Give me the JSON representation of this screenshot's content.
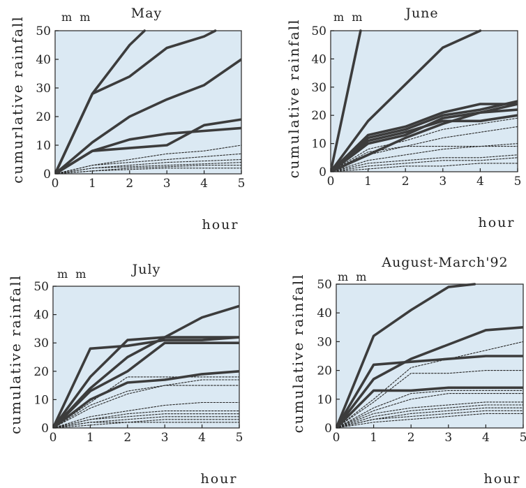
{
  "chart_data": [
    {
      "type": "line",
      "title": "May",
      "unit": "mm",
      "ylabel": "cumurlative rainfall",
      "xlabel": "hour",
      "xlim": [
        0,
        5
      ],
      "ylim": [
        0,
        50
      ],
      "xticks": [
        "0",
        "1",
        "2",
        "3",
        "4",
        "5"
      ],
      "yticks": [
        "0",
        "10",
        "20",
        "30",
        "40",
        "50"
      ],
      "grid": false,
      "series": [
        {
          "style": "solid",
          "x": [
            0,
            1,
            2,
            2.4
          ],
          "y": [
            0,
            28,
            45,
            50
          ]
        },
        {
          "style": "solid",
          "x": [
            0,
            1,
            2,
            3,
            4,
            4.3
          ],
          "y": [
            0,
            28,
            34,
            44,
            48,
            50
          ]
        },
        {
          "style": "solid",
          "x": [
            0,
            1,
            2,
            3,
            4,
            5
          ],
          "y": [
            0,
            11,
            20,
            26,
            31,
            40
          ]
        },
        {
          "style": "solid",
          "x": [
            0,
            1,
            2,
            3,
            4,
            5
          ],
          "y": [
            0,
            8,
            12,
            14,
            15,
            16
          ]
        },
        {
          "style": "solid",
          "x": [
            0,
            1,
            2,
            3,
            4,
            5
          ],
          "y": [
            0,
            8,
            9,
            10,
            17,
            19
          ]
        },
        {
          "style": "dotted",
          "x": [
            0,
            1,
            2,
            3,
            4,
            5
          ],
          "y": [
            0,
            3,
            5,
            7,
            8,
            10
          ]
        },
        {
          "style": "dotted",
          "x": [
            0,
            1,
            2,
            3,
            4,
            5
          ],
          "y": [
            0,
            3,
            4,
            5,
            6,
            7
          ]
        },
        {
          "style": "dotted",
          "x": [
            0,
            1,
            2,
            3,
            4,
            5
          ],
          "y": [
            0,
            2,
            3,
            4,
            4.5,
            5
          ]
        },
        {
          "style": "dotted",
          "x": [
            0,
            1,
            2,
            3,
            4,
            5
          ],
          "y": [
            0,
            2,
            2.5,
            3,
            3.5,
            4
          ]
        },
        {
          "style": "dotted",
          "x": [
            0,
            1,
            2,
            3,
            4,
            5
          ],
          "y": [
            0,
            1,
            2,
            2.5,
            3,
            3
          ]
        },
        {
          "style": "dotted",
          "x": [
            0,
            1,
            2,
            3,
            4,
            5
          ],
          "y": [
            0,
            1,
            1.5,
            2,
            2,
            2
          ]
        }
      ]
    },
    {
      "type": "line",
      "title": "June",
      "unit": "mm",
      "ylabel": "cumulative rainfall",
      "xlabel": "hour",
      "xlim": [
        0,
        5
      ],
      "ylim": [
        0,
        50
      ],
      "xticks": [
        "0",
        "1",
        "2",
        "3",
        "4",
        "5"
      ],
      "yticks": [
        "0",
        "10",
        "20",
        "30",
        "40",
        "50"
      ],
      "grid": false,
      "series": [
        {
          "style": "solid",
          "x": [
            0,
            0.8
          ],
          "y": [
            0,
            50
          ]
        },
        {
          "style": "solid",
          "x": [
            0,
            1,
            2,
            3,
            4
          ],
          "y": [
            0,
            18,
            31,
            44,
            50
          ]
        },
        {
          "style": "solid",
          "x": [
            0,
            1,
            2,
            3,
            4,
            5
          ],
          "y": [
            0,
            13,
            16,
            21,
            24,
            24
          ]
        },
        {
          "style": "solid",
          "x": [
            0,
            1,
            2,
            3,
            4,
            5
          ],
          "y": [
            0,
            12,
            15,
            20,
            22,
            25
          ]
        },
        {
          "style": "solid",
          "x": [
            0,
            1,
            2,
            3,
            4,
            5
          ],
          "y": [
            0,
            11,
            14,
            18,
            18,
            20
          ]
        },
        {
          "style": "solid",
          "x": [
            0,
            1,
            2,
            3,
            4,
            5
          ],
          "y": [
            0,
            10,
            13,
            19,
            21,
            22
          ]
        },
        {
          "style": "solid",
          "x": [
            0,
            1,
            2,
            3,
            4,
            5
          ],
          "y": [
            0,
            6,
            12,
            17,
            21,
            24
          ]
        },
        {
          "style": "dotted",
          "x": [
            0,
            1,
            2,
            3,
            4,
            5
          ],
          "y": [
            0,
            8,
            11,
            15,
            17,
            19
          ]
        },
        {
          "style": "dotted",
          "x": [
            0,
            1,
            2,
            3,
            4,
            5
          ],
          "y": [
            0,
            6,
            9,
            12,
            14,
            16
          ]
        },
        {
          "style": "dotted",
          "x": [
            0,
            1,
            2,
            3,
            4,
            5
          ],
          "y": [
            0,
            7,
            9,
            9,
            9,
            9
          ]
        },
        {
          "style": "dotted",
          "x": [
            0,
            1,
            2,
            3,
            4,
            5
          ],
          "y": [
            0,
            4,
            6,
            8,
            9,
            10
          ]
        },
        {
          "style": "dotted",
          "x": [
            0,
            1,
            2,
            3,
            4,
            5
          ],
          "y": [
            0,
            3,
            4,
            5,
            5,
            6
          ]
        },
        {
          "style": "dotted",
          "x": [
            0,
            1,
            2,
            3,
            4,
            5
          ],
          "y": [
            0,
            2,
            3,
            4,
            4,
            5
          ]
        },
        {
          "style": "dotted",
          "x": [
            0,
            1,
            2,
            3,
            4,
            5
          ],
          "y": [
            0,
            1,
            2,
            2,
            3,
            3
          ]
        }
      ]
    },
    {
      "type": "line",
      "title": "July",
      "unit": "mm",
      "ylabel": "cumulative rainfall",
      "xlabel": "hour",
      "xlim": [
        0,
        5
      ],
      "ylim": [
        0,
        50
      ],
      "xticks": [
        "0",
        "1",
        "2",
        "3",
        "4",
        "5"
      ],
      "yticks": [
        "0",
        "10",
        "20",
        "30",
        "40",
        "50"
      ],
      "grid": false,
      "series": [
        {
          "style": "solid",
          "x": [
            0,
            1,
            2,
            3,
            4,
            5
          ],
          "y": [
            0,
            28,
            29,
            31,
            31,
            32
          ]
        },
        {
          "style": "solid",
          "x": [
            0,
            1,
            2,
            3,
            4,
            5
          ],
          "y": [
            0,
            18,
            31,
            32,
            32,
            32
          ]
        },
        {
          "style": "solid",
          "x": [
            0,
            1,
            2,
            3,
            4,
            5
          ],
          "y": [
            0,
            14,
            25,
            32,
            39,
            43
          ]
        },
        {
          "style": "solid",
          "x": [
            0,
            1,
            2,
            3,
            4,
            5
          ],
          "y": [
            0,
            13,
            20,
            30,
            30,
            30
          ]
        },
        {
          "style": "solid",
          "x": [
            0,
            1,
            2,
            3,
            4,
            5
          ],
          "y": [
            0,
            10,
            16,
            17,
            19,
            20
          ]
        },
        {
          "style": "dotted",
          "x": [
            0,
            1,
            2,
            3,
            4,
            5
          ],
          "y": [
            0,
            9,
            18,
            18,
            18,
            18
          ]
        },
        {
          "style": "dotted",
          "x": [
            0,
            1,
            2,
            3,
            4,
            5
          ],
          "y": [
            0,
            8,
            13,
            15,
            17,
            17
          ]
        },
        {
          "style": "dotted",
          "x": [
            0,
            1,
            2,
            3,
            4,
            5
          ],
          "y": [
            0,
            7,
            12,
            15,
            15,
            15
          ]
        },
        {
          "style": "dotted",
          "x": [
            0,
            1,
            2,
            3,
            4,
            5
          ],
          "y": [
            0,
            4,
            6,
            8,
            9,
            9
          ]
        },
        {
          "style": "dotted",
          "x": [
            0,
            1,
            2,
            3,
            4,
            5
          ],
          "y": [
            0,
            3,
            5,
            6,
            6,
            6
          ]
        },
        {
          "style": "dotted",
          "x": [
            0,
            1,
            2,
            3,
            4,
            5
          ],
          "y": [
            0,
            3,
            4,
            5,
            5,
            5
          ]
        },
        {
          "style": "dotted",
          "x": [
            0,
            1,
            2,
            3,
            4,
            5
          ],
          "y": [
            0,
            2,
            3,
            4,
            4,
            4
          ]
        },
        {
          "style": "dotted",
          "x": [
            0,
            1,
            2,
            3,
            4,
            5
          ],
          "y": [
            0,
            2,
            2,
            3,
            3,
            3
          ]
        },
        {
          "style": "dotted",
          "x": [
            0,
            1,
            2,
            3,
            4,
            5
          ],
          "y": [
            0,
            1,
            2,
            2,
            2,
            2
          ]
        }
      ]
    },
    {
      "type": "line",
      "title": "August-March'92",
      "unit": "mm",
      "ylabel": "cumulative rainfall",
      "xlabel": "hour",
      "xlim": [
        0,
        5
      ],
      "ylim": [
        0,
        50
      ],
      "xticks": [
        "0",
        "1",
        "2",
        "3",
        "4",
        "5"
      ],
      "yticks": [
        "0",
        "10",
        "20",
        "30",
        "40",
        "50"
      ],
      "grid": false,
      "series": [
        {
          "style": "solid",
          "x": [
            0,
            1,
            2,
            3,
            3.7
          ],
          "y": [
            0,
            32,
            41,
            49,
            50
          ]
        },
        {
          "style": "solid",
          "x": [
            0,
            1,
            2,
            3,
            4,
            5
          ],
          "y": [
            0,
            17,
            24,
            29,
            34,
            35
          ]
        },
        {
          "style": "solid",
          "x": [
            0,
            1,
            2,
            3,
            4,
            5
          ],
          "y": [
            0,
            22,
            23,
            24,
            25,
            25
          ]
        },
        {
          "style": "solid",
          "x": [
            0,
            1,
            2,
            3,
            4,
            5
          ],
          "y": [
            0,
            13,
            13,
            14,
            14,
            14
          ]
        },
        {
          "style": "dotted",
          "x": [
            0,
            1,
            2,
            3,
            4,
            5
          ],
          "y": [
            0,
            10,
            21,
            24,
            27,
            30
          ]
        },
        {
          "style": "dotted",
          "x": [
            0,
            1,
            2,
            3,
            4,
            5
          ],
          "y": [
            0,
            9,
            19,
            19,
            20,
            20
          ]
        },
        {
          "style": "dotted",
          "x": [
            0,
            1,
            2,
            3,
            4,
            5
          ],
          "y": [
            0,
            7,
            12,
            13,
            13,
            13
          ]
        },
        {
          "style": "dotted",
          "x": [
            0,
            1,
            2,
            3,
            4,
            5
          ],
          "y": [
            0,
            6,
            10,
            12,
            12,
            12
          ]
        },
        {
          "style": "dotted",
          "x": [
            0,
            1,
            2,
            3,
            4,
            5
          ],
          "y": [
            0,
            5,
            7,
            8,
            9,
            9
          ]
        },
        {
          "style": "dotted",
          "x": [
            0,
            1,
            2,
            3,
            4,
            5
          ],
          "y": [
            0,
            4,
            6,
            7,
            8,
            8
          ]
        },
        {
          "style": "dotted",
          "x": [
            0,
            1,
            2,
            3,
            4,
            5
          ],
          "y": [
            0,
            3,
            5,
            6,
            7,
            7
          ]
        },
        {
          "style": "dotted",
          "x": [
            0,
            1,
            2,
            3,
            4,
            5
          ],
          "y": [
            0,
            3,
            4,
            5,
            6,
            6
          ]
        },
        {
          "style": "dotted",
          "x": [
            0,
            1,
            2,
            3,
            4,
            5
          ],
          "y": [
            0,
            2,
            3,
            4,
            5,
            5
          ]
        }
      ]
    }
  ],
  "colors": {
    "plot_background": "#dbe9f3",
    "solid_line": "#3c3c3c",
    "dotted_line": "#2a2a2a",
    "text": "#222222"
  }
}
